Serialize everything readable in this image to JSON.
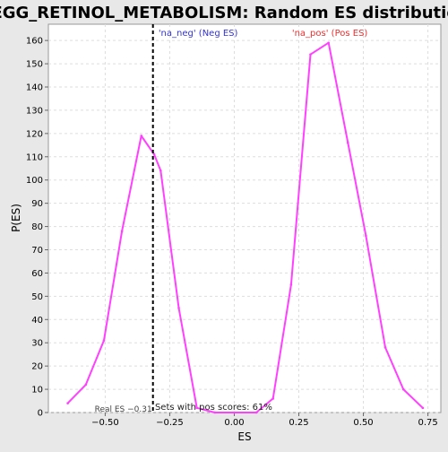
{
  "chart_data": {
    "type": "line",
    "title": "KEGG_RETINOL_METABOLISM: Random ES distribution",
    "xlabel": "ES",
    "ylabel": "P(ES)",
    "xlim": [
      -0.72,
      0.8
    ],
    "ylim": [
      0,
      167
    ],
    "x_ticks": [
      -0.75,
      -0.5,
      -0.25,
      0.0,
      0.25,
      0.5,
      0.75
    ],
    "x_tick_labels": [
      "−0.75",
      "−0.50",
      "−0.25",
      "0.00",
      "0.25",
      "0.50",
      "0.75"
    ],
    "y_ticks": [
      0,
      10,
      20,
      30,
      40,
      50,
      60,
      70,
      80,
      90,
      100,
      110,
      120,
      130,
      140,
      150,
      160
    ],
    "grid": true,
    "series": [
      {
        "color": "#ff40ff",
        "x": [
          -0.645,
          -0.575,
          -0.505,
          -0.435,
          -0.36,
          -0.31,
          -0.285,
          -0.215,
          -0.145,
          -0.075,
          0.0,
          0.085,
          0.15,
          0.22,
          0.295,
          0.365,
          0.44,
          0.51,
          0.585,
          0.655,
          0.73
        ],
        "y": [
          4,
          12,
          31,
          78,
          119,
          111,
          104,
          45,
          2,
          0,
          0,
          0,
          6,
          55,
          154,
          159,
          116,
          76,
          28,
          10,
          2
        ]
      }
    ],
    "vline": {
      "x": -0.315,
      "label": "Real ES −0.31",
      "color": "#000000"
    },
    "annotations": [
      {
        "text": "'na_neg' (Neg ES)",
        "color": "#3333cc",
        "x": -0.14
      },
      {
        "text": "'na_pos' (Pos ES)",
        "color": "#e83030",
        "x": 0.37
      },
      {
        "text": "Sets with pos scores: 61%",
        "color": "#222222",
        "x": -0.08
      }
    ]
  }
}
